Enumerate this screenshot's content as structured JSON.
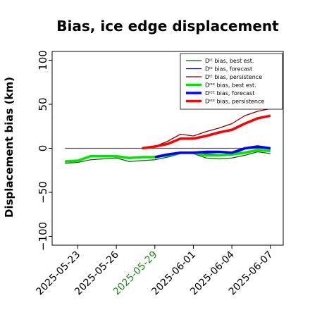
{
  "chart_data": {
    "type": "line",
    "title": "Bias, ice edge displacement",
    "xlabel": "",
    "ylabel": "Displacement bias (km)",
    "ylim": [
      -110,
      110
    ],
    "yticks": [
      -100,
      -50,
      0,
      50,
      100
    ],
    "ytick_labels": [
      "−100",
      "−50",
      "0",
      "50",
      "100"
    ],
    "xlim": [
      "2025-05-21",
      "2025-06-08"
    ],
    "xticks": [
      "2025-05-23",
      "2025-05-26",
      "2025-05-29",
      "2025-06-01",
      "2025-06-04",
      "2025-06-07"
    ],
    "highlighted_xtick": "2025-05-29",
    "highlight_color": "#228b22",
    "grid": false,
    "legend": "top-right",
    "reference_line": {
      "y": 0,
      "from": "2025-05-22",
      "to": "2025-06-07",
      "color": "#555555"
    },
    "series": [
      {
        "name": "Dᴵᴱ bias, best est.",
        "color": "#006400",
        "width": 1.3,
        "x": [
          "2025-05-22",
          "2025-05-23",
          "2025-05-24",
          "2025-05-25",
          "2025-05-26",
          "2025-05-27",
          "2025-05-28",
          "2025-05-29",
          "2025-05-30",
          "2025-05-31",
          "2025-06-01",
          "2025-06-02",
          "2025-06-03",
          "2025-06-04",
          "2025-06-05",
          "2025-06-06",
          "2025-06-07"
        ],
        "values": [
          -17,
          -16,
          -13,
          -12,
          -11,
          -15,
          -14,
          -13,
          -10,
          -6,
          -6,
          -11,
          -12,
          -11,
          -8,
          -4,
          -6
        ]
      },
      {
        "name": "Dᴵᴱ bias, forecast",
        "color": "#00008b",
        "width": 1.3,
        "x": [
          "2025-05-29",
          "2025-05-30",
          "2025-05-31",
          "2025-06-01",
          "2025-06-02",
          "2025-06-03",
          "2025-06-04",
          "2025-06-05",
          "2025-06-06",
          "2025-06-07"
        ],
        "values": [
          -10,
          -8,
          -5,
          -6,
          -6,
          -7,
          -7,
          -1,
          1,
          -1
        ]
      },
      {
        "name": "Dᴵᴱ bias, persistence",
        "color": "#8b0000",
        "width": 1.3,
        "x": [
          "2025-05-28",
          "2025-05-29",
          "2025-05-30",
          "2025-05-31",
          "2025-06-01",
          "2025-06-02",
          "2025-06-03",
          "2025-06-04",
          "2025-06-05",
          "2025-06-06",
          "2025-06-07"
        ],
        "values": [
          0,
          2,
          8,
          16,
          14,
          19,
          23,
          28,
          37,
          42,
          45
        ]
      },
      {
        "name": "Dᴵᴱᴱ bias, best est.",
        "color": "#00e600",
        "width": 3.5,
        "x": [
          "2025-05-22",
          "2025-05-23",
          "2025-05-24",
          "2025-05-25",
          "2025-05-26",
          "2025-05-27",
          "2025-05-28",
          "2025-05-29",
          "2025-05-30",
          "2025-05-31",
          "2025-06-01",
          "2025-06-02",
          "2025-06-03",
          "2025-06-04",
          "2025-06-05",
          "2025-06-06",
          "2025-06-07"
        ],
        "values": [
          -15,
          -14,
          -9,
          -9,
          -9,
          -11,
          -10,
          -10,
          -8,
          -5,
          -5,
          -8,
          -8,
          -7,
          -5,
          -2,
          -3
        ]
      },
      {
        "name": "Dᴵᴱᴱ bias, forecast",
        "color": "#0000ff",
        "width": 3.5,
        "x": [
          "2025-05-29",
          "2025-05-30",
          "2025-05-31",
          "2025-06-01",
          "2025-06-02",
          "2025-06-03",
          "2025-06-04",
          "2025-06-05",
          "2025-06-06",
          "2025-06-07"
        ],
        "values": [
          -10,
          -7,
          -5,
          -5,
          -4,
          -4,
          -5,
          0,
          2,
          0
        ]
      },
      {
        "name": "Dᴵᴱᴱ bias, persistence",
        "color": "#ff0000",
        "width": 3.5,
        "x": [
          "2025-05-28",
          "2025-05-29",
          "2025-05-30",
          "2025-05-31",
          "2025-06-01",
          "2025-06-02",
          "2025-06-03",
          "2025-06-04",
          "2025-06-05",
          "2025-06-06",
          "2025-06-07"
        ],
        "values": [
          0,
          2,
          5,
          11,
          11,
          14,
          18,
          21,
          28,
          34,
          37
        ]
      }
    ]
  }
}
